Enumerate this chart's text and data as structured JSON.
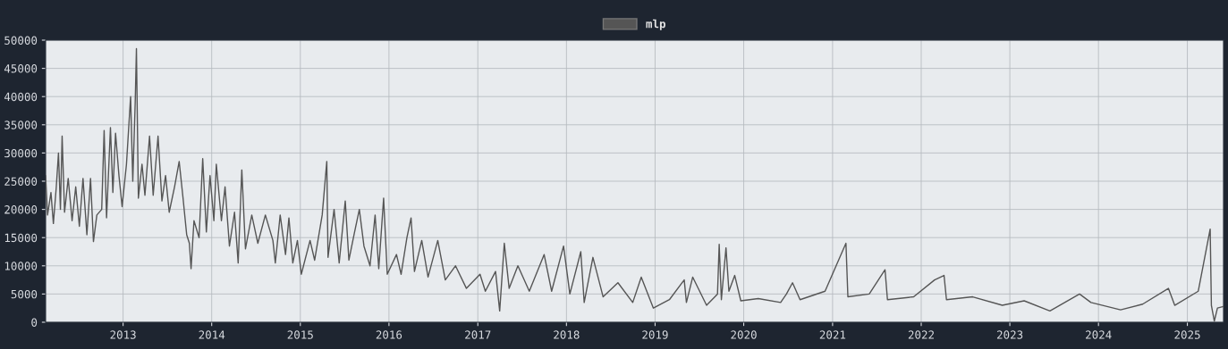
{
  "chart_data": {
    "type": "line",
    "legend": "top",
    "grid": true,
    "xlim": [
      "2012-02-17",
      "2025-05-30"
    ],
    "xticks": [
      "2013",
      "2014",
      "2015",
      "2016",
      "2017",
      "2018",
      "2019",
      "2020",
      "2021",
      "2022",
      "2023",
      "2024",
      "2025"
    ],
    "ylim": [
      0,
      50000
    ],
    "yticks": [
      0,
      5000,
      10000,
      15000,
      20000,
      25000,
      30000,
      35000,
      40000,
      45000,
      50000
    ],
    "series": [
      {
        "name": "mlp",
        "color": "#555555",
        "x": [
          "2012-02-17",
          "2012-02-25",
          "2012-03-10",
          "2012-03-20",
          "2012-04-01",
          "2012-04-10",
          "2012-04-18",
          "2012-04-25",
          "2012-05-05",
          "2012-05-20",
          "2012-06-05",
          "2012-06-20",
          "2012-07-05",
          "2012-07-20",
          "2012-08-05",
          "2012-08-20",
          "2012-09-01",
          "2012-09-15",
          "2012-10-05",
          "2012-10-15",
          "2012-10-25",
          "2012-11-10",
          "2012-11-20",
          "2012-12-01",
          "2012-12-15",
          "2012-12-28",
          "2013-01-15",
          "2013-02-01",
          "2013-02-10",
          "2013-02-20",
          "2013-02-25",
          "2013-03-05",
          "2013-03-20",
          "2013-04-01",
          "2013-04-20",
          "2013-05-05",
          "2013-05-25",
          "2013-06-10",
          "2013-06-25",
          "2013-07-10",
          "2013-08-01",
          "2013-08-20",
          "2013-09-05",
          "2013-09-20",
          "2013-10-01",
          "2013-10-08",
          "2013-10-20",
          "2013-11-10",
          "2013-11-25",
          "2013-12-10",
          "2013-12-25",
          "2014-01-10",
          "2014-01-20",
          "2014-02-10",
          "2014-02-25",
          "2014-03-15",
          "2014-04-05",
          "2014-04-20",
          "2014-05-05",
          "2014-05-20",
          "2014-06-15",
          "2014-07-10",
          "2014-08-10",
          "2014-09-10",
          "2014-09-20",
          "2014-10-10",
          "2014-11-01",
          "2014-11-15",
          "2014-12-01",
          "2014-12-20",
          "2015-01-05",
          "2015-02-10",
          "2015-03-01",
          "2015-04-01",
          "2015-04-20",
          "2015-04-25",
          "2015-05-20",
          "2015-06-10",
          "2015-07-05",
          "2015-07-20",
          "2015-08-10",
          "2015-09-01",
          "2015-09-20",
          "2015-10-15",
          "2015-11-05",
          "2015-11-20",
          "2015-12-10",
          "2015-12-25",
          "2016-02-01",
          "2016-02-20",
          "2016-03-15",
          "2016-04-01",
          "2016-04-15",
          "2016-05-15",
          "2016-06-10",
          "2016-07-20",
          "2016-08-20",
          "2016-10-01",
          "2016-11-15",
          "2017-01-10",
          "2017-02-01",
          "2017-03-15",
          "2017-04-01",
          "2017-04-20",
          "2017-05-10",
          "2017-06-15",
          "2017-08-01",
          "2017-10-01",
          "2017-11-01",
          "2017-12-20",
          "2018-01-15",
          "2018-03-01",
          "2018-03-15",
          "2018-04-20",
          "2018-06-01",
          "2018-08-01",
          "2018-10-01",
          "2018-11-05",
          "2018-12-25",
          "2019-03-01",
          "2019-05-01",
          "2019-05-10",
          "2019-06-05",
          "2019-08-01",
          "2019-09-15",
          "2019-09-22",
          "2019-10-01",
          "2019-10-20",
          "2019-11-01",
          "2019-11-25",
          "2019-12-20",
          "2020-03-01",
          "2020-06-01",
          "2020-06-25",
          "2020-07-20",
          "2020-08-20",
          "2020-12-01",
          "2021-02-25",
          "2021-03-05",
          "2021-06-01",
          "2021-08-05",
          "2021-08-15",
          "2021-12-01",
          "2022-02-25",
          "2022-04-05",
          "2022-04-15",
          "2022-08-01",
          "2022-12-01",
          "2023-03-01",
          "2023-06-15",
          "2023-10-15",
          "2023-12-01",
          "2024-04-01",
          "2024-07-01",
          "2024-10-15",
          "2024-11-10",
          "2025-02-15",
          "2025-04-05",
          "2025-04-10",
          "2025-04-22",
          "2025-05-05",
          "2025-05-30"
        ],
        "values": [
          26000,
          19000,
          23000,
          17500,
          24000,
          30000,
          20000,
          33000,
          19500,
          25500,
          18000,
          24000,
          17000,
          25500,
          15500,
          25500,
          14300,
          19000,
          20000,
          34000,
          18500,
          34500,
          23000,
          33500,
          26000,
          20500,
          28000,
          40000,
          25000,
          39000,
          48500,
          22000,
          28000,
          22500,
          33000,
          22500,
          33000,
          21500,
          26000,
          19500,
          24000,
          28500,
          22000,
          15500,
          14000,
          9500,
          18000,
          15000,
          29000,
          16000,
          26000,
          18000,
          28000,
          18000,
          24000,
          13500,
          19500,
          10500,
          27000,
          13000,
          19000,
          14000,
          19000,
          14500,
          10500,
          19000,
          12000,
          18500,
          10500,
          14500,
          8500,
          14500,
          11000,
          19000,
          28500,
          11500,
          20000,
          10500,
          21500,
          11000,
          15500,
          20000,
          13500,
          10000,
          19000,
          9500,
          22000,
          8500,
          12000,
          8500,
          15000,
          18500,
          9000,
          14500,
          8000,
          14500,
          7500,
          10000,
          6000,
          8500,
          5500,
          9000,
          2000,
          14000,
          6000,
          10000,
          5500,
          12000,
          5500,
          13500,
          5000,
          12500,
          3500,
          11500,
          4500,
          7000,
          3500,
          8000,
          2500,
          4000,
          7500,
          3500,
          8000,
          3000,
          5000,
          13800,
          4000,
          13200,
          5500,
          8300,
          3800,
          4200,
          3500,
          5000,
          7000,
          4000,
          5500,
          14000,
          4500,
          5000,
          9300,
          4000,
          4500,
          7500,
          8300,
          4000,
          4500,
          3000,
          3800,
          2000,
          5000,
          3500,
          2200,
          3200,
          6000,
          3000,
          5500,
          16500,
          3000,
          200,
          2500,
          2800
        ]
      }
    ]
  }
}
